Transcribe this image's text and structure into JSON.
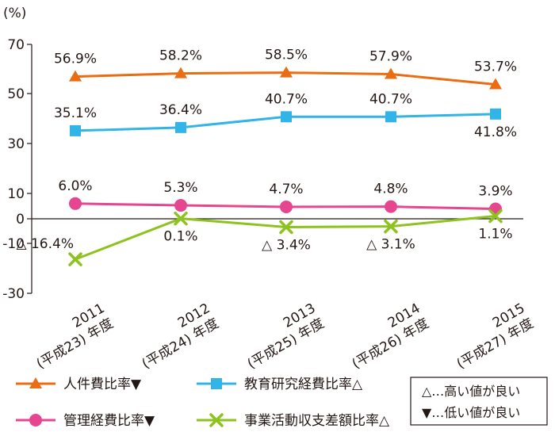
{
  "chart_data": {
    "type": "line",
    "unit_label": "(%)",
    "ylim": [
      -30,
      70
    ],
    "yticks": [
      "70",
      "50",
      "30",
      "10",
      "0",
      "-10",
      "-30"
    ],
    "ytick_values": [
      70,
      50,
      30,
      10,
      0,
      -10,
      -30
    ],
    "categories": [
      [
        "2011",
        "(平成23) 年度"
      ],
      [
        "2012",
        "(平成24) 年度"
      ],
      [
        "2013",
        "(平成25) 年度"
      ],
      [
        "2014",
        "(平成26) 年度"
      ],
      [
        "2015",
        "(平成27) 年度"
      ]
    ],
    "series": [
      {
        "name": "人件費比率▼",
        "color": "#ea6c13",
        "marker": "triangle",
        "values": [
          56.9,
          58.2,
          58.5,
          57.9,
          53.7
        ],
        "labels": [
          "56.9%",
          "58.2%",
          "58.5%",
          "57.9%",
          "53.7%"
        ],
        "label_position": "above"
      },
      {
        "name": "教育研究経費比率△",
        "color": "#32b4e6",
        "marker": "square",
        "values": [
          35.1,
          36.4,
          40.7,
          40.7,
          41.8
        ],
        "labels": [
          "35.1%",
          "36.4%",
          "40.7%",
          "40.7%",
          "41.8%"
        ],
        "label_position": [
          "above",
          "above",
          "above",
          "above",
          "below"
        ]
      },
      {
        "name": "管理経費比率▼",
        "color": "#e5468f",
        "marker": "circle",
        "values": [
          6.0,
          5.3,
          4.7,
          4.8,
          3.9
        ],
        "labels": [
          "6.0%",
          "5.3%",
          "4.7%",
          "4.8%",
          "3.9%"
        ],
        "label_position": "above"
      },
      {
        "name": "事業活動収支差額比率△",
        "color": "#8dc21f",
        "marker": "x",
        "values": [
          -16.4,
          0.1,
          -3.4,
          -3.1,
          1.1
        ],
        "labels": [
          "△ 16.4%",
          "0.1%",
          "△ 3.4%",
          "△ 3.1%",
          "1.1%"
        ],
        "label_position": [
          "left",
          "below",
          "below",
          "below",
          "below"
        ]
      }
    ],
    "legend_position": "bottom",
    "notes": [
      "△…高い値が良い",
      "▼…低い値が良い"
    ]
  }
}
